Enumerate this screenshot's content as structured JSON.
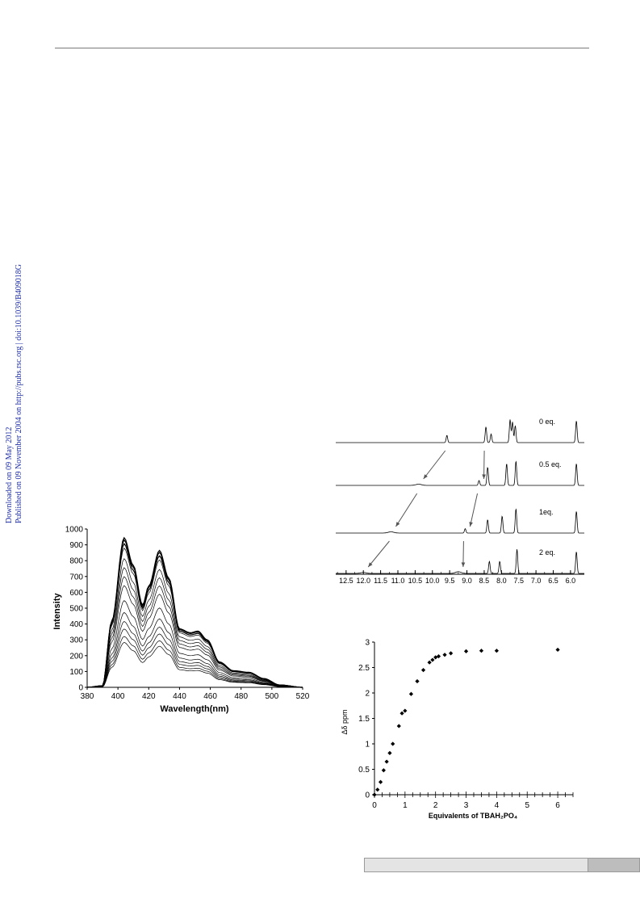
{
  "side_note": {
    "line1": "Downloaded on 09 May 2012",
    "line2": "Published on 09 November 2004 on http://pubs.rsc.org | doi:10.1039/B409018G"
  },
  "chart_data": [
    {
      "type": "line",
      "xlabel": "Wavelength(nm)",
      "ylabel": "Intensity",
      "xlim": [
        380,
        520
      ],
      "ylim": [
        0,
        1000
      ],
      "x_ticks": [
        380,
        400,
        420,
        440,
        460,
        480,
        500,
        520
      ],
      "y_ticks": [
        0,
        100,
        200,
        300,
        400,
        500,
        600,
        700,
        800,
        900,
        1000
      ],
      "grid": false,
      "series_note": "family of emission spectra",
      "peak_x": [
        404,
        427,
        452,
        485
      ],
      "peak_scales": [
        1.0,
        0.985,
        0.96,
        0.93,
        0.86,
        0.8,
        0.74,
        0.68,
        0.58,
        0.5,
        0.44,
        0.39,
        0.34,
        0.3
      ],
      "top_spectrum": [
        {
          "x": 380,
          "y": 0
        },
        {
          "x": 390,
          "y": 10
        },
        {
          "x": 396,
          "y": 420
        },
        {
          "x": 404,
          "y": 945
        },
        {
          "x": 410,
          "y": 770
        },
        {
          "x": 416,
          "y": 520
        },
        {
          "x": 420,
          "y": 640
        },
        {
          "x": 427,
          "y": 865
        },
        {
          "x": 433,
          "y": 690
        },
        {
          "x": 440,
          "y": 370
        },
        {
          "x": 447,
          "y": 345
        },
        {
          "x": 452,
          "y": 355
        },
        {
          "x": 458,
          "y": 300
        },
        {
          "x": 466,
          "y": 160
        },
        {
          "x": 475,
          "y": 105
        },
        {
          "x": 485,
          "y": 95
        },
        {
          "x": 495,
          "y": 55
        },
        {
          "x": 505,
          "y": 15
        },
        {
          "x": 520,
          "y": 0
        }
      ]
    },
    {
      "type": "line",
      "chart_kind": "nmr-stack",
      "x_ticks": [
        "12.5",
        "12.0",
        "11.5",
        "11.0",
        "10.5",
        "10.0",
        "9.5",
        "9.0",
        "8.5",
        "8.0",
        "7.5",
        "7.0",
        "6.5",
        "6.0"
      ],
      "xlim": [
        12.8,
        5.6
      ],
      "grid": false,
      "series": [
        {
          "name": "0 eq.",
          "peaks": [
            9.58,
            8.45,
            8.3,
            7.75,
            7.68,
            7.6,
            5.83
          ],
          "heights": [
            0.3,
            0.65,
            0.35,
            0.95,
            0.85,
            0.7,
            0.9
          ]
        },
        {
          "name": "0.5 eq.",
          "peaks": [
            10.4,
            8.65,
            8.4,
            7.85,
            7.58,
            5.83
          ],
          "heights": [
            0.05,
            0.2,
            0.75,
            0.9,
            1.0,
            0.9
          ]
        },
        {
          "name": "1eq.",
          "peaks": [
            11.2,
            9.05,
            8.4,
            7.98,
            7.58,
            5.83
          ],
          "heights": [
            0.05,
            0.18,
            0.55,
            0.7,
            1.0,
            0.9
          ]
        },
        {
          "name": "2 eq.",
          "peaks": [
            12.0,
            9.25,
            8.35,
            8.05,
            7.55,
            5.83
          ],
          "heights": [
            0.04,
            0.07,
            0.5,
            0.5,
            1.0,
            0.9
          ]
        }
      ]
    },
    {
      "type": "scatter",
      "xlabel": "Equivalents of TBAH₂PO₄",
      "ylabel": "Δδ ppm",
      "xlim": [
        0,
        6.5
      ],
      "ylim": [
        0,
        3
      ],
      "x_ticks": [
        0,
        1,
        2,
        3,
        4,
        5,
        6
      ],
      "y_ticks": [
        0,
        0.5,
        1,
        1.5,
        2,
        2.5,
        3
      ],
      "grid": false,
      "x": [
        0,
        0.1,
        0.2,
        0.3,
        0.4,
        0.5,
        0.6,
        0.8,
        0.9,
        1.0,
        1.2,
        1.4,
        1.6,
        1.8,
        1.9,
        2.0,
        2.1,
        2.3,
        2.5,
        3.0,
        3.5,
        4.0,
        6.0
      ],
      "y": [
        0,
        0.1,
        0.25,
        0.48,
        0.65,
        0.82,
        1.0,
        1.35,
        1.6,
        1.65,
        1.98,
        2.23,
        2.45,
        2.6,
        2.65,
        2.7,
        2.72,
        2.75,
        2.78,
        2.82,
        2.83,
        2.83,
        2.85
      ]
    }
  ]
}
